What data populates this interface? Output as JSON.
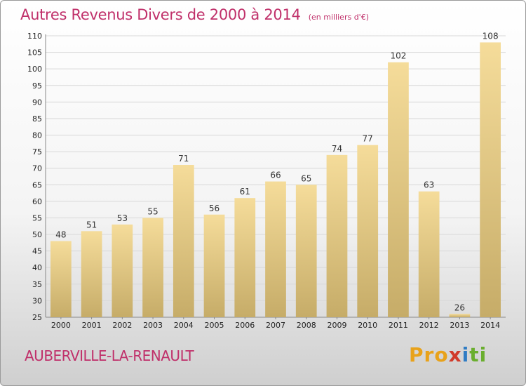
{
  "header": {
    "title": "Autres Revenus Divers de 2000 à 2014",
    "unit": "(en milliers d'€)"
  },
  "footer": {
    "city": "AUBERVILLE-LA-RENAULT",
    "logo_parts": [
      "Pro",
      "x",
      "i",
      "ti"
    ]
  },
  "colors": {
    "accent": "#c0306a",
    "bar_top": "#f5dc9a",
    "bar_bottom": "#c6ac68",
    "grid": "#d8d8d8"
  },
  "chart_data": {
    "type": "bar",
    "title": "Autres Revenus Divers de 2000 à 2014",
    "subtitle": "(en milliers d'€)",
    "xlabel": "",
    "ylabel": "",
    "categories": [
      "2000",
      "2001",
      "2002",
      "2003",
      "2004",
      "2005",
      "2006",
      "2007",
      "2008",
      "2009",
      "2010",
      "2011",
      "2012",
      "2013",
      "2014"
    ],
    "values": [
      48,
      51,
      53,
      55,
      71,
      56,
      61,
      66,
      65,
      74,
      77,
      102,
      63,
      26,
      108
    ],
    "ylim": [
      25,
      110
    ],
    "yticks": [
      25,
      30,
      35,
      40,
      45,
      50,
      55,
      60,
      65,
      70,
      75,
      80,
      85,
      90,
      95,
      100,
      105,
      110
    ],
    "grid": true,
    "legend": "none"
  }
}
